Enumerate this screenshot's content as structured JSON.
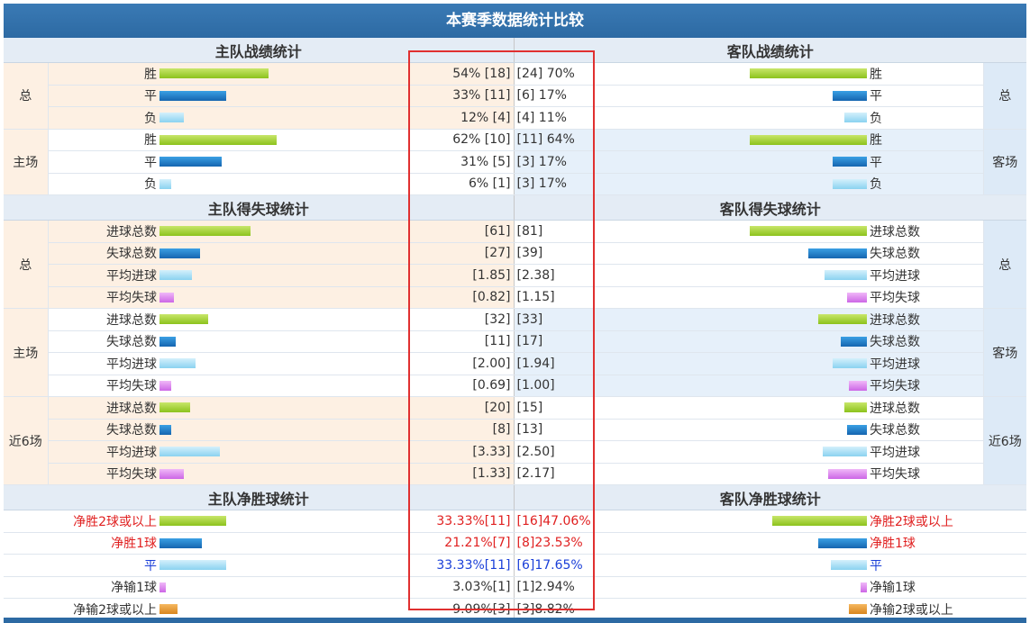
{
  "title": "本赛季数据统计比较",
  "colors": {
    "header_bg": "#2d6aa3",
    "green": "#8cc21c",
    "blue": "#1565b0",
    "light_blue": "#8ad2f0",
    "purple": "#cc66e6",
    "orange": "#d8861e",
    "red": "#e02020",
    "dark_blue": "#1a3fd8",
    "highlight_border": "#e03030"
  },
  "sections": [
    {
      "home_title": "主队战绩统计",
      "away_title": "客队战绩统计",
      "groups": [
        {
          "home_label": "总",
          "away_label": "总",
          "rows": [
            {
              "label": "胜",
              "home_value": "54% [18]",
              "away_value": "[24] 70%",
              "home_bar": 0.54,
              "away_bar": 0.7,
              "color": "green"
            },
            {
              "label": "平",
              "home_value": "33% [11]",
              "away_value": "[6] 17%",
              "home_bar": 0.33,
              "away_bar": 0.17,
              "color": "blue"
            },
            {
              "label": "负",
              "home_value": "12% [4]",
              "away_value": "[4] 11%",
              "home_bar": 0.12,
              "away_bar": 0.11,
              "color": "light"
            }
          ]
        },
        {
          "home_label": "主场",
          "away_label": "客场",
          "rows": [
            {
              "label": "胜",
              "home_value": "62% [10]",
              "away_value": "[11] 64%",
              "home_bar": 0.62,
              "away_bar": 0.64,
              "color": "green"
            },
            {
              "label": "平",
              "home_value": "31% [5]",
              "away_value": "[3] 17%",
              "home_bar": 0.31,
              "away_bar": 0.17,
              "color": "blue"
            },
            {
              "label": "负",
              "home_value": "6% [1]",
              "away_value": "[3] 17%",
              "home_bar": 0.06,
              "away_bar": 0.17,
              "color": "light"
            }
          ]
        }
      ]
    },
    {
      "home_title": "主队得失球统计",
      "away_title": "客队得失球统计",
      "groups": [
        {
          "home_label": "总",
          "away_label": "总",
          "rows": [
            {
              "label": "进球总数",
              "home_value": "[61]",
              "away_value": "[81]",
              "home_bar": 0.45,
              "away_bar": 0.6,
              "color": "green"
            },
            {
              "label": "失球总数",
              "home_value": "[27]",
              "away_value": "[39]",
              "home_bar": 0.2,
              "away_bar": 0.29,
              "color": "blue"
            },
            {
              "label": "平均进球",
              "home_value": "[1.85]",
              "away_value": "[2.38]",
              "home_bar": 0.16,
              "away_bar": 0.21,
              "color": "light"
            },
            {
              "label": "平均失球",
              "home_value": "[0.82]",
              "away_value": "[1.15]",
              "home_bar": 0.07,
              "away_bar": 0.1,
              "color": "purple"
            }
          ]
        },
        {
          "home_label": "主场",
          "away_label": "客场",
          "rows": [
            {
              "label": "进球总数",
              "home_value": "[32]",
              "away_value": "[33]",
              "home_bar": 0.24,
              "away_bar": 0.24,
              "color": "green"
            },
            {
              "label": "失球总数",
              "home_value": "[11]",
              "away_value": "[17]",
              "home_bar": 0.08,
              "away_bar": 0.13,
              "color": "blue"
            },
            {
              "label": "平均进球",
              "home_value": "[2.00]",
              "away_value": "[1.94]",
              "home_bar": 0.18,
              "away_bar": 0.17,
              "color": "light"
            },
            {
              "label": "平均失球",
              "home_value": "[0.69]",
              "away_value": "[1.00]",
              "home_bar": 0.06,
              "away_bar": 0.09,
              "color": "purple"
            }
          ]
        },
        {
          "home_label": "近6场",
          "away_label": "近6场",
          "rows": [
            {
              "label": "进球总数",
              "home_value": "[20]",
              "away_value": "[15]",
              "home_bar": 0.15,
              "away_bar": 0.11,
              "color": "green"
            },
            {
              "label": "失球总数",
              "home_value": "[8]",
              "away_value": "[13]",
              "home_bar": 0.06,
              "away_bar": 0.1,
              "color": "blue"
            },
            {
              "label": "平均进球",
              "home_value": "[3.33]",
              "away_value": "[2.50]",
              "home_bar": 0.3,
              "away_bar": 0.22,
              "color": "light"
            },
            {
              "label": "平均失球",
              "home_value": "[1.33]",
              "away_value": "[2.17]",
              "home_bar": 0.12,
              "away_bar": 0.19,
              "color": "purple"
            }
          ]
        }
      ]
    },
    {
      "home_title": "主队净胜球统计",
      "away_title": "客队净胜球统计",
      "rows": [
        {
          "label": "净胜2球或以上",
          "home_value": "33.33%[11]",
          "away_value": "[16]47.06%",
          "home_bar": 0.33,
          "away_bar": 0.47,
          "color": "green",
          "text_color": "red"
        },
        {
          "label": "净胜1球",
          "home_value": "21.21%[7]",
          "away_value": "[8]23.53%",
          "home_bar": 0.21,
          "away_bar": 0.24,
          "color": "blue",
          "text_color": "red"
        },
        {
          "label": "平",
          "home_value": "33.33%[11]",
          "away_value": "[6]17.65%",
          "home_bar": 0.33,
          "away_bar": 0.18,
          "color": "light",
          "text_color": "blue"
        },
        {
          "label": "净输1球",
          "home_value": "3.03%[1]",
          "away_value": "[1]2.94%",
          "home_bar": 0.03,
          "away_bar": 0.03,
          "color": "pink",
          "text_color": "dark"
        },
        {
          "label": "净输2球或以上",
          "home_value": "9.09%[3]",
          "away_value": "[3]8.82%",
          "home_bar": 0.09,
          "away_bar": 0.09,
          "color": "orange",
          "text_color": "dark"
        }
      ]
    }
  ]
}
